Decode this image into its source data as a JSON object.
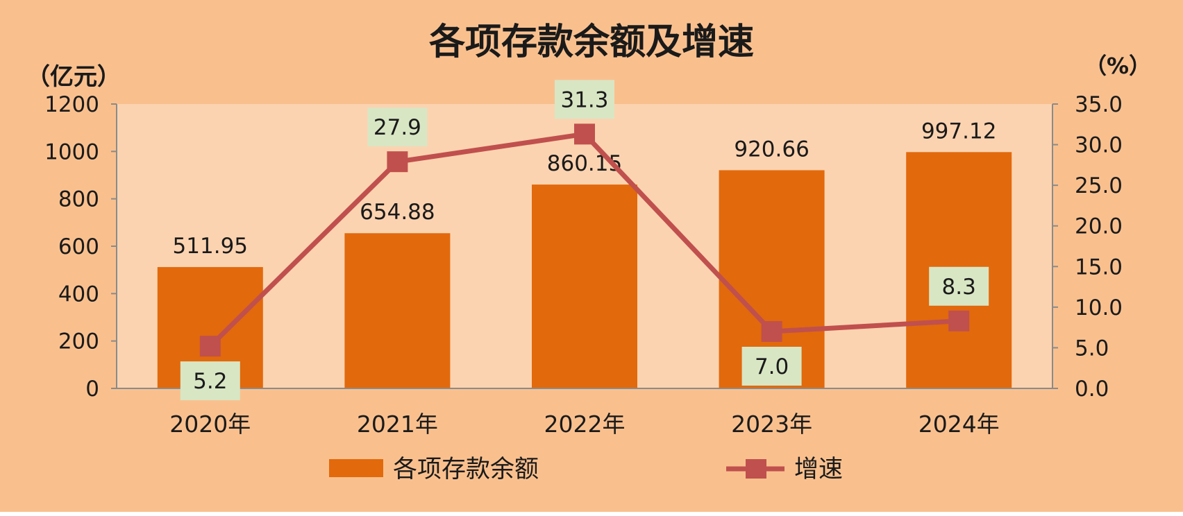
{
  "chart_data": {
    "type": "bar",
    "title": "各项存款余额及增速",
    "categories": [
      "2020年",
      "2021年",
      "2022年",
      "2023年",
      "2024年"
    ],
    "series": [
      {
        "name": "各项存款余额",
        "type": "bar",
        "axis": "left",
        "values": [
          511.95,
          654.88,
          860.15,
          920.66,
          997.12
        ]
      },
      {
        "name": "增速",
        "type": "line",
        "axis": "right",
        "values": [
          5.2,
          27.9,
          31.3,
          7.0,
          8.3
        ]
      }
    ],
    "bar_labels": [
      "511.95",
      "654.88",
      "860.15",
      "920.66",
      "997.12"
    ],
    "line_labels": [
      "5.2",
      "27.9",
      "31.3",
      "7.0",
      "8.3"
    ],
    "y_left": {
      "unit": "（亿元）",
      "range": [
        0,
        1200
      ],
      "ticks": [
        "0",
        "200",
        "400",
        "600",
        "800",
        "1000",
        "1200"
      ]
    },
    "y_right": {
      "unit": "（%）",
      "range": [
        0,
        35
      ],
      "ticks": [
        "0.0",
        "5.0",
        "10.0",
        "15.0",
        "20.0",
        "25.0",
        "30.0",
        "35.0"
      ]
    },
    "legend": {
      "position": "bottom",
      "items": [
        "各项存款余额",
        "增速"
      ]
    },
    "grid": false,
    "colors": {
      "outer_background": "#f9c08e",
      "plot_background": "#fcd3b0",
      "bar": "#e2690c",
      "line": "#c0504d",
      "label_box": "#d8e6c4",
      "axis": "#8a8a8a",
      "text": "#1a1a1a"
    }
  }
}
